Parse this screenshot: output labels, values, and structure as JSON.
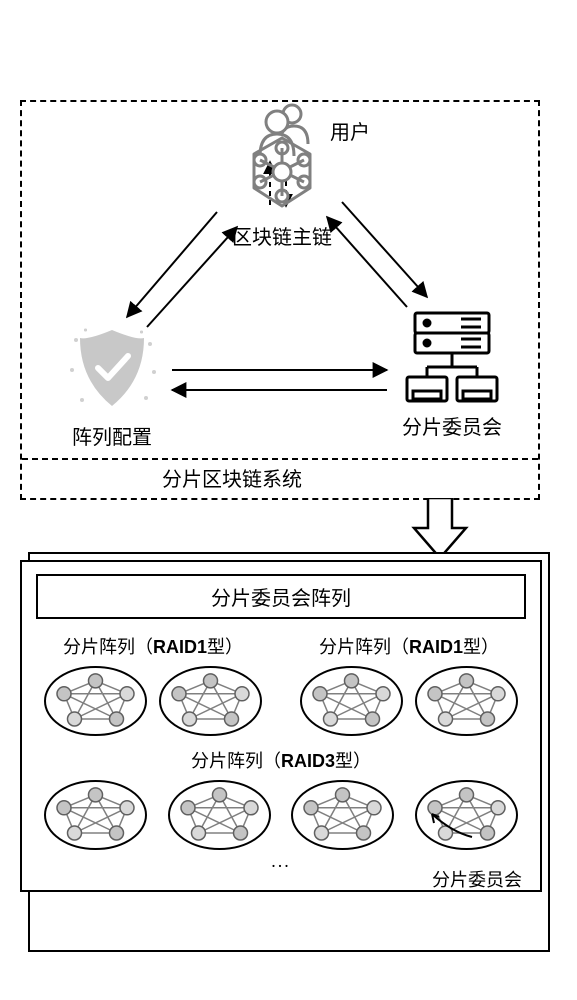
{
  "user_label": "用户",
  "system": {
    "mainchain_label": "区块链主链",
    "arraycfg_label": "阵列配置",
    "committee_label": "分片委员会",
    "caption": "分片区块链系统"
  },
  "lower": {
    "title": "分片委员会阵列",
    "raid1_a": "分片阵列（",
    "raid1_a_bold": "RAID1",
    "raid1_a_tail": "型）",
    "raid1_b": "分片阵列（",
    "raid1_b_bold": "RAID1",
    "raid1_b_tail": "型）",
    "raid3": "分片阵列（",
    "raid3_bold": "RAID3",
    "raid3_tail": "型）",
    "dots": "...",
    "committee_label": "分片委员会"
  },
  "style": {
    "stroke": "#000000",
    "dashed": "#000000",
    "node_fill": "#c4c4c4",
    "node_fill_light": "#d9d9d9",
    "icon_gray": "#808080",
    "icon_light": "#bfbfbf",
    "sparkle": "#d0d0d0",
    "fontsize_label": 20,
    "fontsize_small": 18,
    "oval_w": 105,
    "oval_h": 72,
    "graph_node_r": 7
  }
}
